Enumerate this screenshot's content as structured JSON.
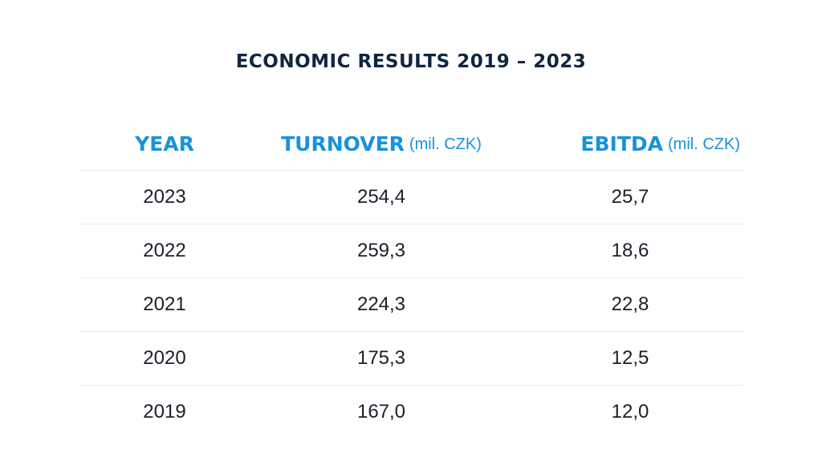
{
  "title": "ECONOMIC RESULTS 2019 – 2023",
  "table": {
    "headers": {
      "year": "YEAR",
      "turnover": "TURNOVER",
      "turnover_unit": "(mil. CZK)",
      "ebitda": "EBITDA",
      "ebitda_unit": "(mil. CZK)"
    },
    "rows": [
      {
        "year": "2023",
        "turnover": "254,4",
        "ebitda": "25,7"
      },
      {
        "year": "2022",
        "turnover": "259,3",
        "ebitda": "18,6"
      },
      {
        "year": "2021",
        "turnover": "224,3",
        "ebitda": "22,8"
      },
      {
        "year": "2020",
        "turnover": "175,3",
        "ebitda": "12,5"
      },
      {
        "year": "2019",
        "turnover": "167,0",
        "ebitda": "12,0"
      }
    ]
  },
  "colors": {
    "title": "#10253f",
    "header_accent": "#1793d8",
    "text": "#1c1f2a",
    "divider": "#e6e8eb"
  }
}
